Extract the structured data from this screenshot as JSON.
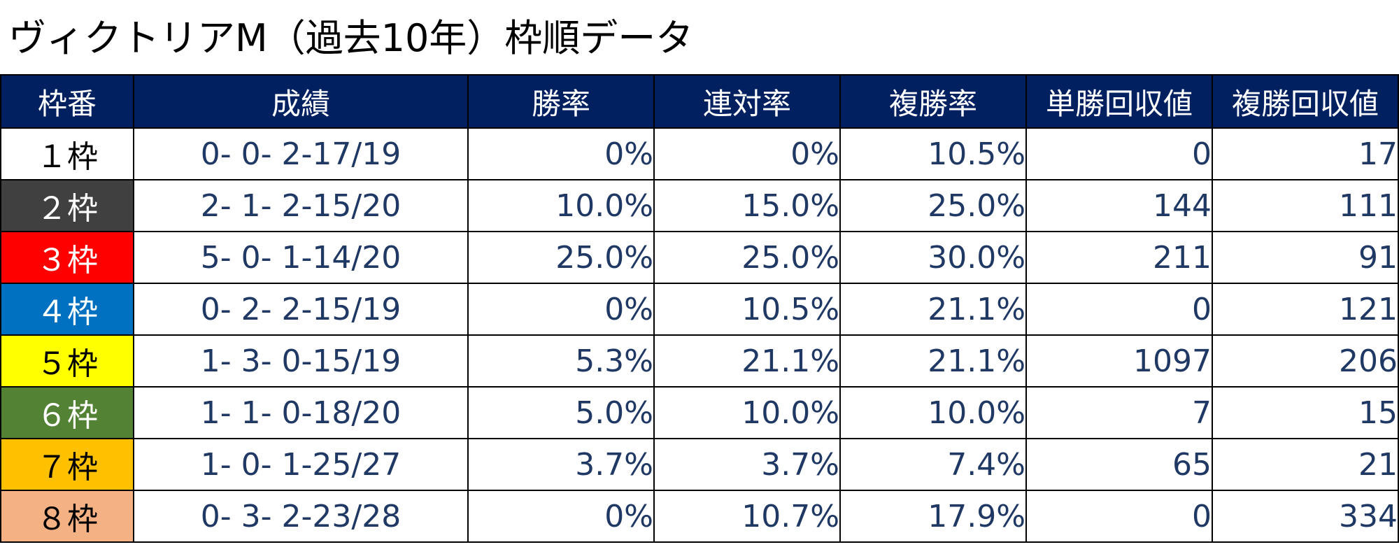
{
  "title": "ヴィクトリアM（過去10年）枠順データ",
  "headers": [
    "枠番",
    "成績",
    "勝率",
    "連対率",
    "複勝率",
    "単勝回収値",
    "複勝回収値"
  ],
  "rows": [
    {
      "waku": "１枠",
      "bg": "#ffffff",
      "fg": "#000000",
      "seiseki": "0- 0- 2-17/19",
      "win": "0%",
      "ren": "0%",
      "fuku": "10.5%",
      "tan_kaishu": "0",
      "fuku_kaishu": "17"
    },
    {
      "waku": "２枠",
      "bg": "#404040",
      "fg": "#ffffff",
      "seiseki": "2- 1- 2-15/20",
      "win": "10.0%",
      "ren": "15.0%",
      "fuku": "25.0%",
      "tan_kaishu": "144",
      "fuku_kaishu": "111"
    },
    {
      "waku": "３枠",
      "bg": "#ff0000",
      "fg": "#ffffff",
      "seiseki": "5- 0- 1-14/20",
      "win": "25.0%",
      "ren": "25.0%",
      "fuku": "30.0%",
      "tan_kaishu": "211",
      "fuku_kaishu": "91"
    },
    {
      "waku": "４枠",
      "bg": "#0070c0",
      "fg": "#ffffff",
      "seiseki": "0- 2- 2-15/19",
      "win": "0%",
      "ren": "10.5%",
      "fuku": "21.1%",
      "tan_kaishu": "0",
      "fuku_kaishu": "121"
    },
    {
      "waku": "５枠",
      "bg": "#ffff00",
      "fg": "#000000",
      "seiseki": "1- 3- 0-15/19",
      "win": "5.3%",
      "ren": "21.1%",
      "fuku": "21.1%",
      "tan_kaishu": "1097",
      "fuku_kaishu": "206"
    },
    {
      "waku": "６枠",
      "bg": "#548235",
      "fg": "#ffffff",
      "seiseki": "1- 1- 0-18/20",
      "win": "5.0%",
      "ren": "10.0%",
      "fuku": "10.0%",
      "tan_kaishu": "7",
      "fuku_kaishu": "15"
    },
    {
      "waku": "７枠",
      "bg": "#ffc000",
      "fg": "#000000",
      "seiseki": "1- 0- 1-25/27",
      "win": "3.7%",
      "ren": "3.7%",
      "fuku": "7.4%",
      "tan_kaishu": "65",
      "fuku_kaishu": "21"
    },
    {
      "waku": "８枠",
      "bg": "#f4b183",
      "fg": "#000000",
      "seiseki": "0- 3- 2-23/28",
      "win": "0%",
      "ren": "10.7%",
      "fuku": "17.9%",
      "tan_kaishu": "0",
      "fuku_kaishu": "334"
    }
  ]
}
